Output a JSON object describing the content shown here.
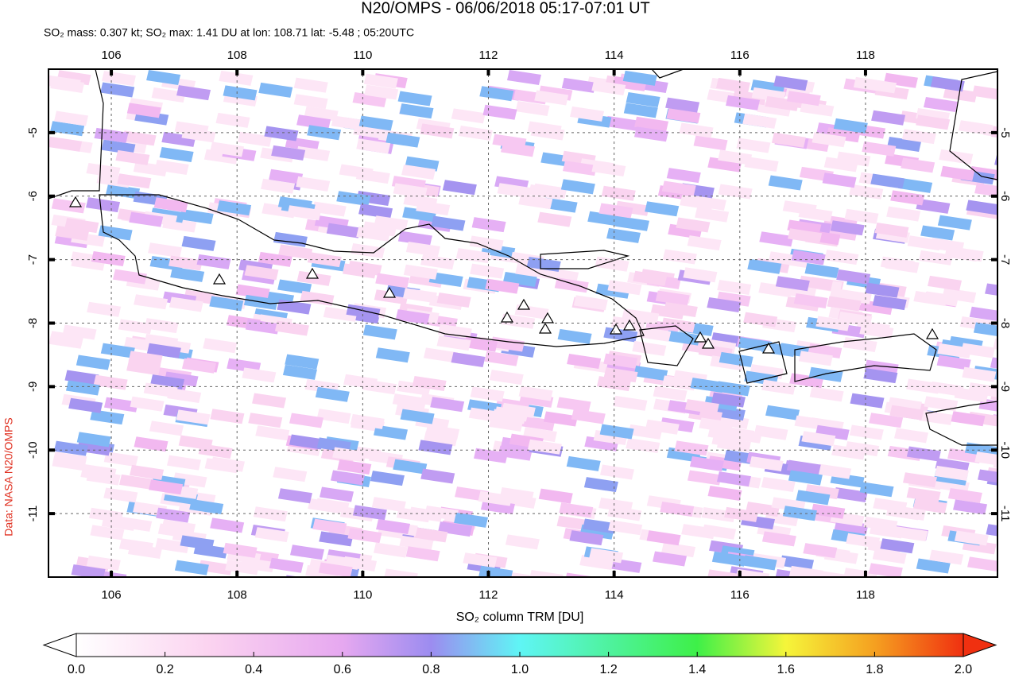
{
  "chart_data": {
    "type": "map",
    "title": "N20/OMPS - 06/06/2018 05:17-07:01 UT",
    "subtitle": "SO₂ mass: 0.307 kt; SO₂ max: 1.41 DU at lon: 108.71 lat: -5.48 ; 05:20UTC",
    "source": "Data: NASA N20/OMPS",
    "xlim": [
      105,
      120.1
    ],
    "ylim": [
      -12,
      -4
    ],
    "xticks": [
      106,
      108,
      110,
      112,
      114,
      116,
      118
    ],
    "yticks": [
      -5,
      -6,
      -7,
      -8,
      -9,
      -10,
      -11
    ],
    "grid": true,
    "colorbar": {
      "label": "SO₂ column TRM [DU]",
      "lim": [
        0,
        2
      ],
      "ticks": [
        {
          "value": 0,
          "label": "0.0"
        },
        {
          "value": 0.2,
          "label": "0.2"
        },
        {
          "value": 0.4,
          "label": "0.4"
        },
        {
          "value": 0.6,
          "label": "0.6"
        },
        {
          "value": 0.8,
          "label": "0.8"
        },
        {
          "value": 1,
          "label": "1.0"
        },
        {
          "value": 1.2,
          "label": "1.2"
        },
        {
          "value": 1.4,
          "label": "1.4"
        },
        {
          "value": 1.6,
          "label": "1.6"
        },
        {
          "value": 1.8,
          "label": "1.8"
        },
        {
          "value": 2,
          "label": "2.0"
        }
      ]
    }
  }
}
